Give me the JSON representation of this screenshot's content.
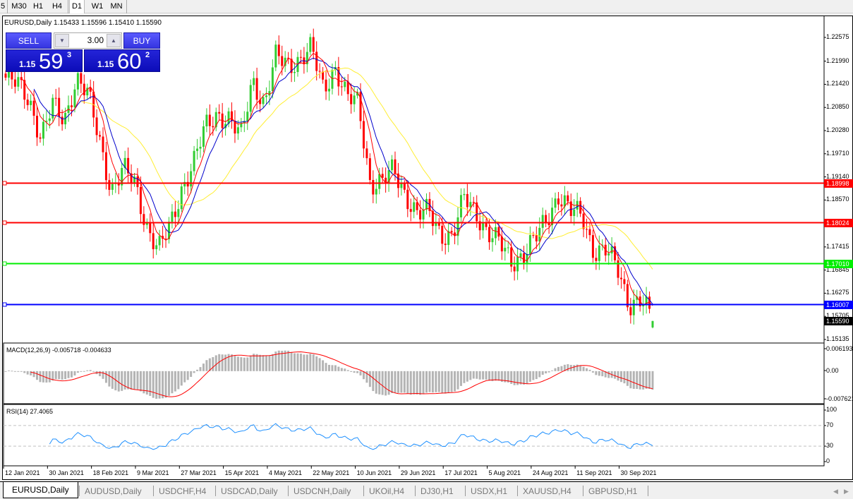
{
  "toolbar": {
    "timeframes": [
      "5",
      "M30",
      "H1",
      "H4",
      "D1",
      "W1",
      "MN"
    ],
    "active": "D1"
  },
  "chart": {
    "title": "EURUSD,Daily  1.15433 1.15596 1.15410 1.15590",
    "trade_panel": {
      "sell_label": "SELL",
      "buy_label": "BUY",
      "lot": "3.00",
      "sell_small": "1.15",
      "sell_big": "59",
      "sell_sup": "3",
      "buy_small": "1.15",
      "buy_big": "60",
      "buy_sup": "2"
    },
    "price_axis": [
      "1.22575",
      "1.21990",
      "1.21420",
      "1.20850",
      "1.20280",
      "1.19710",
      "1.19140",
      "1.18570",
      "1.17415",
      "1.16845",
      "1.16275",
      "1.15705",
      "1.15135"
    ],
    "levels": [
      {
        "price": "1.18998",
        "color": "#ff0000"
      },
      {
        "price": "1.18024",
        "color": "#ff0000"
      },
      {
        "price": "1.17010",
        "color": "#00ee00"
      },
      {
        "price": "1.16007",
        "color": "#0000ff"
      }
    ],
    "current_price": "1.15590",
    "dates": [
      "12 Jan 2021",
      "30 Jan 2021",
      "18 Feb 2021",
      "9 Mar 2021",
      "27 Mar 2021",
      "15 Apr 2021",
      "4 May 2021",
      "22 May 2021",
      "10 Jun 2021",
      "29 Jun 2021",
      "17 Jul 2021",
      "5 Aug 2021",
      "24 Aug 2021",
      "11 Sep 2021",
      "30 Sep 2021"
    ],
    "colors": {
      "bull": "#32cd32",
      "bear": "#ff0000",
      "ma_fast": "#ff0000",
      "ma_mid": "#0000cc",
      "ma_slow": "#ffee33"
    }
  },
  "macd": {
    "label": "MACD(12,26,9) -0.005718 -0.004633",
    "axis": [
      "0.006193",
      "0.00",
      "-0.007621"
    ]
  },
  "rsi": {
    "label": "RSI(14) 27.4065",
    "axis": [
      "100",
      "70",
      "30",
      "0"
    ]
  },
  "tabs": [
    "EURUSD,Daily",
    "AUDUSD,Daily",
    "USDCHF,H4",
    "USDCAD,Daily",
    "USDCNH,Daily",
    "UKOil,H4",
    "DJ30,H1",
    "USDX,H1",
    "XAUUSD,H4",
    "GBPUSD,H1"
  ],
  "active_tab": "EURUSD,Daily",
  "chart_data": {
    "type": "candlestick",
    "symbol": "EURUSD",
    "timeframe": "Daily",
    "ylim": [
      1.15135,
      1.22575
    ],
    "approx_closes": [
      1.21584,
      1.2141,
      1.21063,
      1.20107,
      1.20889,
      1.20541,
      1.21584,
      1.2115,
      1.2002,
      1.18803,
      1.19325,
      1.18977,
      1.17934,
      1.17326,
      1.17934,
      1.1889,
      1.19498,
      1.20368,
      1.20715,
      1.20541,
      1.20107,
      1.21584,
      1.20889,
      1.22106,
      1.21932,
      1.22019,
      1.2228,
      1.21323,
      1.21845,
      1.21063,
      1.20976,
      1.18977,
      1.18977,
      1.19325,
      1.18716,
      1.18195,
      1.18282,
      1.1776,
      1.17673,
      1.18629,
      1.18282,
      1.1776,
      1.17499,
      1.17065,
      1.17239,
      1.17586,
      1.18108,
      1.18716,
      1.18282,
      1.18195,
      1.17326,
      1.17326,
      1.16891,
      1.16022,
      1.16109,
      1.1559
    ]
  }
}
